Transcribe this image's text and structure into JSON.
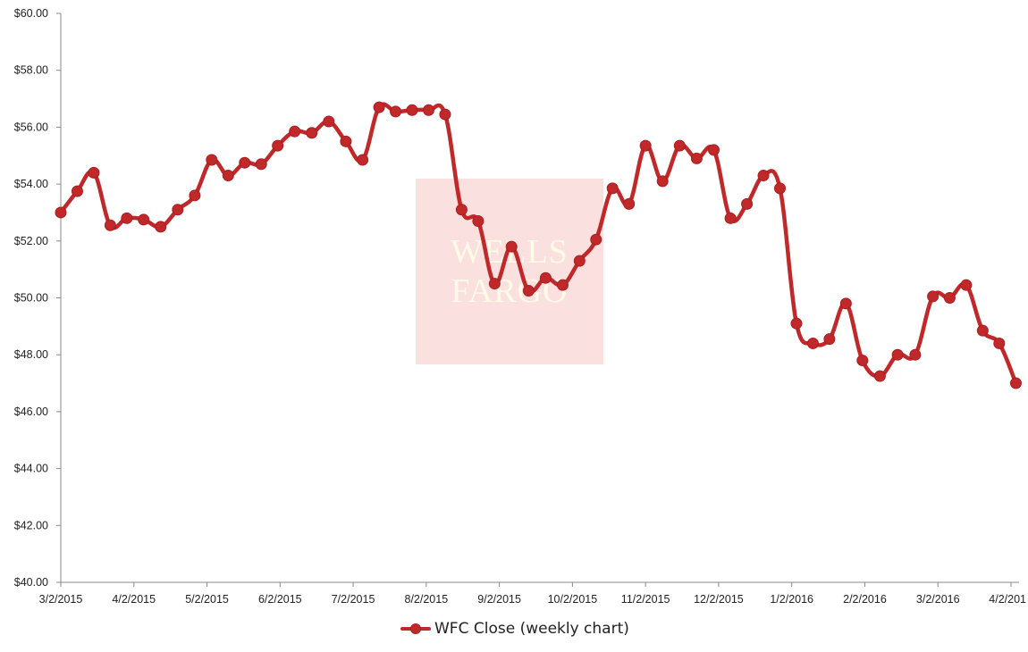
{
  "chart_data": {
    "type": "line",
    "title": "",
    "xlabel": "",
    "ylabel": "",
    "ylim": [
      40,
      60
    ],
    "yticks": [
      "$40.00",
      "$42.00",
      "$44.00",
      "$46.00",
      "$48.00",
      "$50.00",
      "$52.00",
      "$54.00",
      "$56.00",
      "$58.00",
      "$60.00"
    ],
    "xticks": [
      "3/2/2015",
      "4/2/2015",
      "5/2/2015",
      "6/2/2015",
      "7/2/2015",
      "8/2/2015",
      "9/2/2015",
      "10/2/2015",
      "11/2/2015",
      "12/2/2015",
      "1/2/2016",
      "2/2/2016",
      "3/2/2016",
      "4/2/201"
    ],
    "grid": false,
    "legend_position": "bottom",
    "series": [
      {
        "name": "WFC Close (weekly chart)",
        "color": "#c0282a",
        "x": [
          "2015-03-02",
          "2015-03-09",
          "2015-03-16",
          "2015-03-23",
          "2015-03-30",
          "2015-04-06",
          "2015-04-13",
          "2015-04-20",
          "2015-04-27",
          "2015-05-04",
          "2015-05-11",
          "2015-05-18",
          "2015-05-25",
          "2015-06-01",
          "2015-06-08",
          "2015-06-15",
          "2015-06-22",
          "2015-06-29",
          "2015-07-06",
          "2015-07-13",
          "2015-07-20",
          "2015-07-27",
          "2015-08-03",
          "2015-08-10",
          "2015-08-17",
          "2015-08-24",
          "2015-08-31",
          "2015-09-07",
          "2015-09-14",
          "2015-09-21",
          "2015-09-28",
          "2015-10-05",
          "2015-10-12",
          "2015-10-19",
          "2015-10-26",
          "2015-11-02",
          "2015-11-09",
          "2015-11-16",
          "2015-11-23",
          "2015-11-30",
          "2015-12-07",
          "2015-12-14",
          "2015-12-21",
          "2015-12-28",
          "2016-01-04",
          "2016-01-11",
          "2016-01-18",
          "2016-01-25",
          "2016-02-01",
          "2016-02-08",
          "2016-02-15",
          "2016-02-22",
          "2016-02-29",
          "2016-03-07",
          "2016-03-14",
          "2016-03-21",
          "2016-03-28",
          "2016-04-04"
        ],
        "values": [
          53.0,
          53.75,
          54.4,
          52.55,
          52.8,
          52.75,
          52.5,
          53.1,
          53.6,
          54.85,
          54.3,
          54.75,
          54.7,
          55.35,
          55.85,
          55.8,
          56.2,
          55.5,
          54.85,
          56.7,
          56.55,
          56.6,
          56.6,
          56.45,
          53.1,
          52.7,
          50.5,
          51.8,
          50.25,
          50.7,
          50.45,
          51.3,
          52.05,
          53.85,
          53.3,
          55.35,
          54.1,
          55.35,
          54.9,
          55.2,
          52.8,
          53.3,
          54.3,
          53.85,
          49.1,
          48.4,
          48.55,
          49.8,
          47.8,
          47.25,
          48.0,
          48.0,
          50.05,
          50.0,
          50.45,
          48.85,
          48.4,
          47.0
        ]
      }
    ]
  },
  "watermark": {
    "lines": [
      "WELLS",
      "FARGO"
    ],
    "background_color": "#fbe0e0",
    "text_color": "#fffbe6"
  },
  "legend": {
    "label": "WFC Close (weekly chart)"
  }
}
